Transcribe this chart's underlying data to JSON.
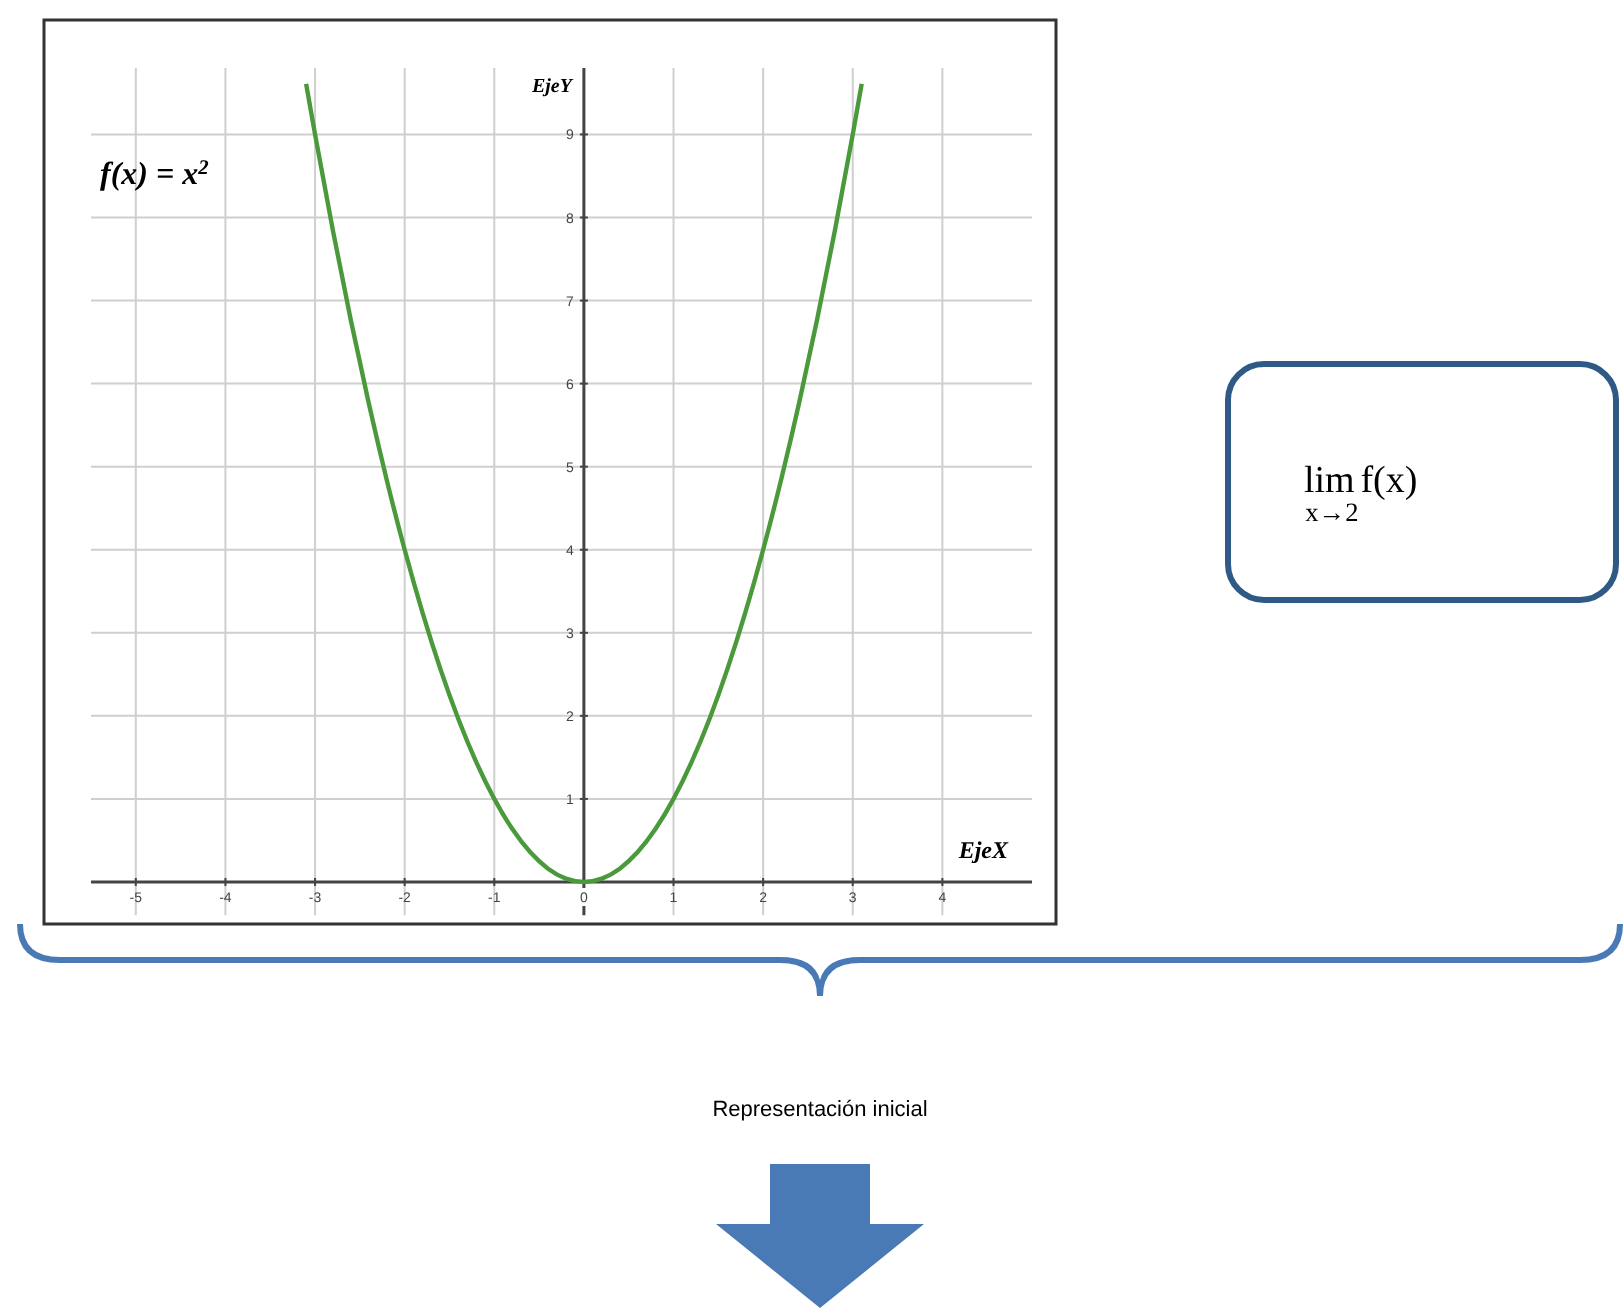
{
  "chart_data": {
    "type": "line",
    "xlabel": "EjeX",
    "ylabel": "EjeY",
    "x": [
      -3.1,
      -3.0,
      -2.8,
      -2.6,
      -2.4,
      -2.2,
      -2.0,
      -1.8,
      -1.6,
      -1.4,
      -1.2,
      -1.0,
      -0.8,
      -0.6,
      -0.4,
      -0.2,
      0,
      0.2,
      0.4,
      0.6,
      0.8,
      1.0,
      1.2,
      1.4,
      1.6,
      1.8,
      2.0,
      2.2,
      2.4,
      2.6,
      2.8,
      3.0,
      3.1
    ],
    "series": [
      {
        "color": "#4a9a3c",
        "values": [
          9.61,
          9,
          7.84,
          6.76,
          5.76,
          4.84,
          4,
          3.24,
          2.56,
          1.96,
          1.44,
          1,
          0.64,
          0.36,
          0.16,
          0.04,
          0,
          0.04,
          0.16,
          0.36,
          0.64,
          1,
          1.44,
          1.96,
          2.56,
          3.24,
          4,
          4.84,
          5.76,
          6.76,
          7.84,
          9,
          9.61
        ]
      }
    ],
    "xlim": [
      -5.5,
      5
    ],
    "ylim": [
      -0.4,
      9.8
    ],
    "xticks": [
      -5,
      -4,
      -3,
      -2,
      -1,
      0,
      1,
      2,
      3,
      4
    ],
    "yticks": [
      1,
      2,
      3,
      4,
      5,
      6,
      7,
      8,
      9
    ],
    "grid": true,
    "marker": "none",
    "line_style": "solid",
    "annotations": [
      "f(x) = x$^{2}$",
      "lim$_{x→2}$f(x)",
      "Representación inicial"
    ]
  }
}
